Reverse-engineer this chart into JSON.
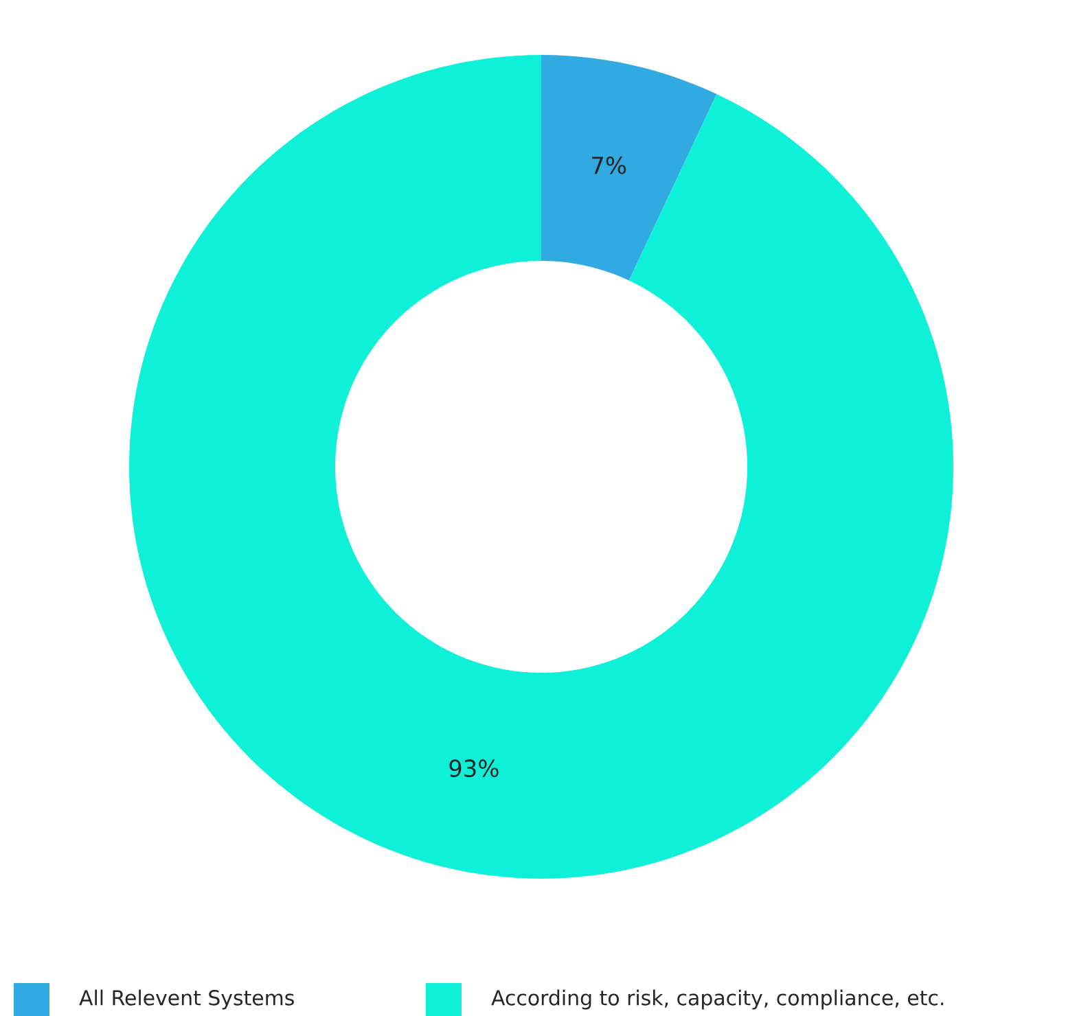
{
  "chart_data": {
    "type": "donut",
    "categories": [
      "All Relevent Systems",
      "According to risk, capacity, compliance, etc."
    ],
    "values": [
      7,
      93
    ],
    "colors": [
      "#31a9e1",
      "#0ff0d8"
    ],
    "value_labels": [
      "7%",
      "93%"
    ],
    "legend": "bottom"
  }
}
